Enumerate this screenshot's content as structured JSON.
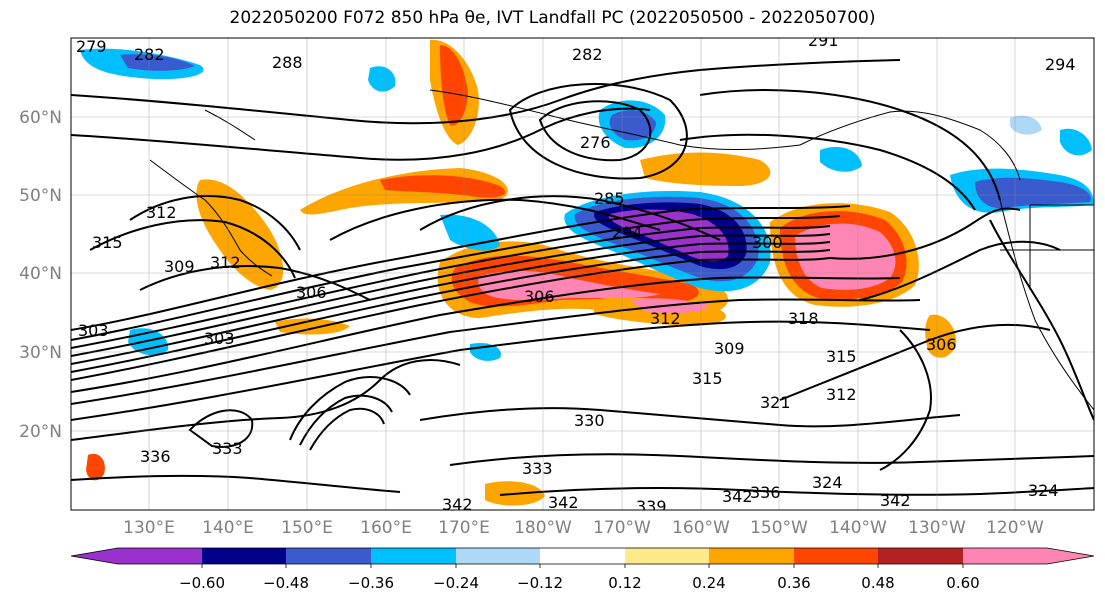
{
  "title": "2022050200 F072 850 hPa θe, IVT Landfall PC (2022050500 - 2022050700)",
  "lat_labels": [
    "60°N",
    "50°N",
    "40°N",
    "30°N",
    "20°N"
  ],
  "lon_labels": [
    "130°E",
    "140°E",
    "150°E",
    "160°E",
    "170°E",
    "180°W",
    "170°W",
    "160°W",
    "150°W",
    "140°W",
    "130°W",
    "120°W"
  ],
  "contour_labels": [
    "279",
    "282",
    "288",
    "282",
    "291",
    "294",
    "276",
    "285",
    "294",
    "300",
    "312",
    "315",
    "309",
    "312",
    "306",
    "306",
    "303",
    "303",
    "312",
    "318",
    "309",
    "315",
    "315",
    "321",
    "312",
    "306",
    "330",
    "333",
    "333",
    "336",
    "342",
    "342",
    "339",
    "342",
    "336",
    "324",
    "342",
    "324"
  ],
  "colorbar": {
    "ticks": [
      "−0.60",
      "−0.48",
      "−0.36",
      "−0.24",
      "−0.12",
      "0.12",
      "0.24",
      "0.36",
      "0.48",
      "0.60"
    ],
    "colors": [
      "#9932cc",
      "#00008b",
      "#3a5bcd",
      "#00bfff",
      "#add8f6",
      "#ffffff",
      "#ffe98a",
      "#ffa500",
      "#ff4500",
      "#b22222",
      "#ff85b4"
    ]
  }
}
